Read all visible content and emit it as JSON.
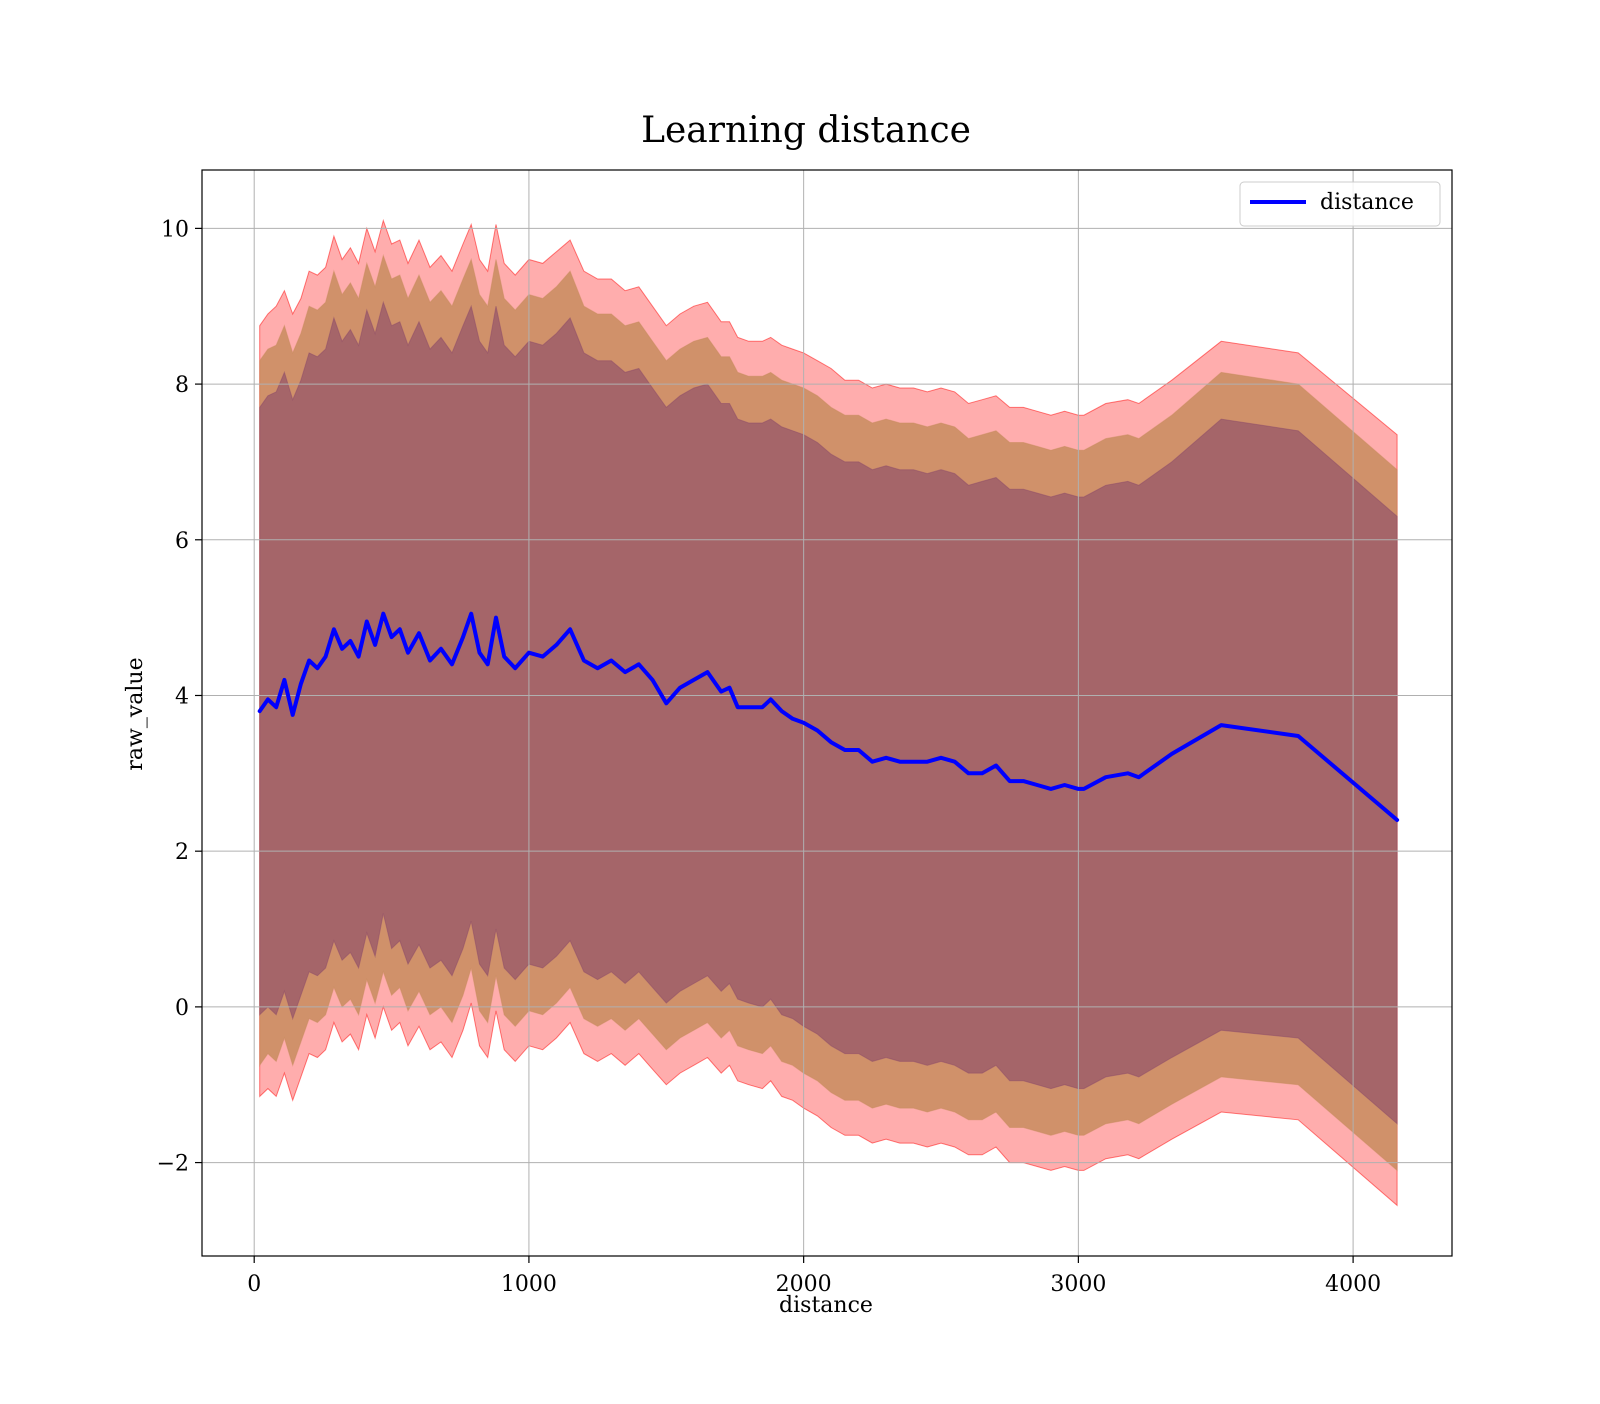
{
  "chart_data": {
    "type": "line",
    "title": "Learning distance",
    "xlabel": "distance",
    "ylabel": "raw_value",
    "xlim": [
      -190,
      4360
    ],
    "ylim": [
      -3.2,
      10.75
    ],
    "xticks": [
      0,
      1000,
      2000,
      3000,
      4000
    ],
    "xtick_labels": [
      "0",
      "1000",
      "2000",
      "3000",
      "4000"
    ],
    "yticks": [
      -2,
      0,
      2,
      4,
      6,
      8,
      10
    ],
    "ytick_labels": [
      "−2",
      "0",
      "2",
      "4",
      "6",
      "8",
      "10"
    ],
    "grid": true,
    "legend_position": "top-right",
    "series": [
      {
        "name": "distance",
        "color": "#0000ff",
        "x": [
          20,
          50,
          80,
          110,
          140,
          170,
          200,
          230,
          260,
          290,
          320,
          350,
          380,
          410,
          440,
          470,
          500,
          530,
          560,
          600,
          640,
          680,
          720,
          760,
          790,
          820,
          850,
          880,
          910,
          950,
          1000,
          1050,
          1100,
          1150,
          1200,
          1250,
          1300,
          1350,
          1400,
          1450,
          1500,
          1550,
          1600,
          1650,
          1700,
          1730,
          1760,
          1800,
          1850,
          1880,
          1920,
          1960,
          2000,
          2050,
          2100,
          2150,
          2200,
          2250,
          2300,
          2350,
          2400,
          2450,
          2500,
          2550,
          2600,
          2650,
          2700,
          2750,
          2800,
          2850,
          2900,
          2950,
          3000,
          3020,
          3100,
          3180,
          3220,
          3340,
          3520,
          3800,
          4160
        ],
        "values": [
          3.8,
          3.95,
          3.85,
          4.2,
          3.75,
          4.15,
          4.45,
          4.35,
          4.5,
          4.85,
          4.6,
          4.7,
          4.5,
          4.95,
          4.65,
          5.05,
          4.75,
          4.85,
          4.55,
          4.8,
          4.45,
          4.6,
          4.4,
          4.75,
          5.05,
          4.55,
          4.4,
          5.0,
          4.5,
          4.35,
          4.55,
          4.5,
          4.65,
          4.85,
          4.45,
          4.35,
          4.45,
          4.3,
          4.4,
          4.2,
          3.9,
          4.1,
          4.2,
          4.3,
          4.05,
          4.1,
          3.85,
          3.85,
          3.85,
          3.95,
          3.8,
          3.7,
          3.65,
          3.55,
          3.4,
          3.3,
          3.3,
          3.15,
          3.2,
          3.15,
          3.15,
          3.15,
          3.2,
          3.15,
          3.0,
          3.0,
          3.1,
          2.9,
          2.9,
          2.85,
          2.8,
          2.85,
          2.8,
          2.8,
          2.95,
          3.0,
          2.95,
          3.25,
          3.62,
          3.48,
          2.4
        ]
      }
    ],
    "bands": [
      {
        "color": "#ff0000",
        "opacity": 0.32,
        "upper": [
          8.75,
          8.9,
          9.0,
          9.2,
          8.9,
          9.1,
          9.45,
          9.4,
          9.5,
          9.9,
          9.6,
          9.75,
          9.55,
          10.0,
          9.7,
          10.1,
          9.8,
          9.85,
          9.55,
          9.85,
          9.5,
          9.65,
          9.45,
          9.8,
          10.05,
          9.6,
          9.45,
          10.05,
          9.55,
          9.4,
          9.6,
          9.55,
          9.7,
          9.85,
          9.45,
          9.35,
          9.35,
          9.2,
          9.25,
          9.0,
          8.75,
          8.9,
          9.0,
          9.05,
          8.8,
          8.8,
          8.6,
          8.55,
          8.55,
          8.6,
          8.5,
          8.45,
          8.4,
          8.3,
          8.2,
          8.05,
          8.05,
          7.95,
          8.0,
          7.95,
          7.95,
          7.9,
          7.95,
          7.9,
          7.75,
          7.8,
          7.85,
          7.7,
          7.7,
          7.65,
          7.6,
          7.65,
          7.6,
          7.6,
          7.75,
          7.8,
          7.75,
          8.05,
          8.55,
          8.4,
          7.35
        ],
        "lower": [
          -1.15,
          -1.05,
          -1.15,
          -0.85,
          -1.2,
          -0.9,
          -0.6,
          -0.65,
          -0.55,
          -0.2,
          -0.45,
          -0.35,
          -0.55,
          -0.1,
          -0.4,
          0.0,
          -0.3,
          -0.2,
          -0.5,
          -0.25,
          -0.55,
          -0.45,
          -0.65,
          -0.3,
          0.05,
          -0.5,
          -0.65,
          -0.05,
          -0.55,
          -0.7,
          -0.5,
          -0.55,
          -0.4,
          -0.2,
          -0.6,
          -0.7,
          -0.6,
          -0.75,
          -0.6,
          -0.8,
          -1.0,
          -0.85,
          -0.75,
          -0.65,
          -0.85,
          -0.75,
          -0.95,
          -1.0,
          -1.05,
          -0.95,
          -1.15,
          -1.2,
          -1.3,
          -1.4,
          -1.55,
          -1.65,
          -1.65,
          -1.75,
          -1.7,
          -1.75,
          -1.75,
          -1.8,
          -1.75,
          -1.8,
          -1.9,
          -1.9,
          -1.8,
          -2.0,
          -2.0,
          -2.05,
          -2.1,
          -2.05,
          -2.1,
          -2.1,
          -1.95,
          -1.9,
          -1.95,
          -1.7,
          -1.35,
          -1.45,
          -2.55
        ]
      },
      {
        "color": "#c88c5e",
        "opacity": 0.85,
        "upper": [
          8.3,
          8.45,
          8.5,
          8.75,
          8.4,
          8.65,
          9.0,
          8.95,
          9.05,
          9.45,
          9.15,
          9.3,
          9.1,
          9.55,
          9.25,
          9.65,
          9.35,
          9.4,
          9.1,
          9.4,
          9.05,
          9.2,
          9.0,
          9.35,
          9.6,
          9.15,
          9.0,
          9.6,
          9.1,
          8.95,
          9.15,
          9.1,
          9.25,
          9.45,
          9.0,
          8.9,
          8.9,
          8.75,
          8.8,
          8.55,
          8.3,
          8.45,
          8.55,
          8.6,
          8.35,
          8.35,
          8.15,
          8.1,
          8.1,
          8.15,
          8.05,
          8.0,
          7.95,
          7.85,
          7.7,
          7.6,
          7.6,
          7.5,
          7.55,
          7.5,
          7.5,
          7.45,
          7.5,
          7.45,
          7.3,
          7.35,
          7.4,
          7.25,
          7.25,
          7.2,
          7.15,
          7.2,
          7.15,
          7.15,
          7.3,
          7.35,
          7.3,
          7.6,
          8.15,
          8.0,
          6.9
        ],
        "lower": [
          -0.75,
          -0.6,
          -0.7,
          -0.4,
          -0.75,
          -0.45,
          -0.15,
          -0.2,
          -0.1,
          0.25,
          0.0,
          0.1,
          -0.1,
          0.35,
          0.05,
          0.45,
          0.15,
          0.25,
          -0.05,
          0.2,
          -0.1,
          0.0,
          -0.2,
          0.15,
          0.5,
          -0.05,
          -0.2,
          0.4,
          -0.1,
          -0.25,
          -0.05,
          -0.1,
          0.05,
          0.25,
          -0.15,
          -0.25,
          -0.15,
          -0.3,
          -0.15,
          -0.35,
          -0.55,
          -0.4,
          -0.3,
          -0.2,
          -0.4,
          -0.3,
          -0.5,
          -0.55,
          -0.6,
          -0.5,
          -0.7,
          -0.75,
          -0.85,
          -0.95,
          -1.1,
          -1.2,
          -1.2,
          -1.3,
          -1.25,
          -1.3,
          -1.3,
          -1.35,
          -1.3,
          -1.35,
          -1.45,
          -1.45,
          -1.35,
          -1.55,
          -1.55,
          -1.6,
          -1.65,
          -1.6,
          -1.65,
          -1.65,
          -1.5,
          -1.45,
          -1.5,
          -1.25,
          -0.9,
          -1.0,
          -2.1
        ]
      },
      {
        "color": "#8b4a69",
        "opacity": 0.62,
        "upper": [
          7.7,
          7.85,
          7.9,
          8.15,
          7.8,
          8.05,
          8.4,
          8.35,
          8.45,
          8.85,
          8.55,
          8.7,
          8.5,
          8.95,
          8.65,
          9.05,
          8.75,
          8.8,
          8.5,
          8.8,
          8.45,
          8.6,
          8.4,
          8.75,
          9.0,
          8.55,
          8.4,
          9.0,
          8.5,
          8.35,
          8.55,
          8.5,
          8.65,
          8.85,
          8.4,
          8.3,
          8.3,
          8.15,
          8.2,
          7.95,
          7.7,
          7.85,
          7.95,
          8.0,
          7.75,
          7.75,
          7.55,
          7.5,
          7.5,
          7.55,
          7.45,
          7.4,
          7.35,
          7.25,
          7.1,
          7.0,
          7.0,
          6.9,
          6.95,
          6.9,
          6.9,
          6.85,
          6.9,
          6.85,
          6.7,
          6.75,
          6.8,
          6.65,
          6.65,
          6.6,
          6.55,
          6.6,
          6.55,
          6.55,
          6.7,
          6.75,
          6.7,
          7.0,
          7.55,
          7.4,
          6.3
        ],
        "lower": [
          -0.1,
          0.0,
          -0.1,
          0.2,
          -0.15,
          0.15,
          0.45,
          0.4,
          0.5,
          0.85,
          0.6,
          0.7,
          0.5,
          0.95,
          0.65,
          1.2,
          0.75,
          0.85,
          0.55,
          0.8,
          0.5,
          0.6,
          0.4,
          0.75,
          1.1,
          0.55,
          0.4,
          1.0,
          0.5,
          0.35,
          0.55,
          0.5,
          0.65,
          0.85,
          0.45,
          0.35,
          0.45,
          0.3,
          0.45,
          0.25,
          0.05,
          0.2,
          0.3,
          0.4,
          0.2,
          0.3,
          0.1,
          0.05,
          0.0,
          0.1,
          -0.1,
          -0.15,
          -0.25,
          -0.35,
          -0.5,
          -0.6,
          -0.6,
          -0.7,
          -0.65,
          -0.7,
          -0.7,
          -0.75,
          -0.7,
          -0.75,
          -0.85,
          -0.85,
          -0.75,
          -0.95,
          -0.95,
          -1.0,
          -1.05,
          -1.0,
          -1.05,
          -1.05,
          -0.9,
          -0.85,
          -0.9,
          -0.65,
          -0.3,
          -0.4,
          -1.5
        ]
      }
    ]
  }
}
